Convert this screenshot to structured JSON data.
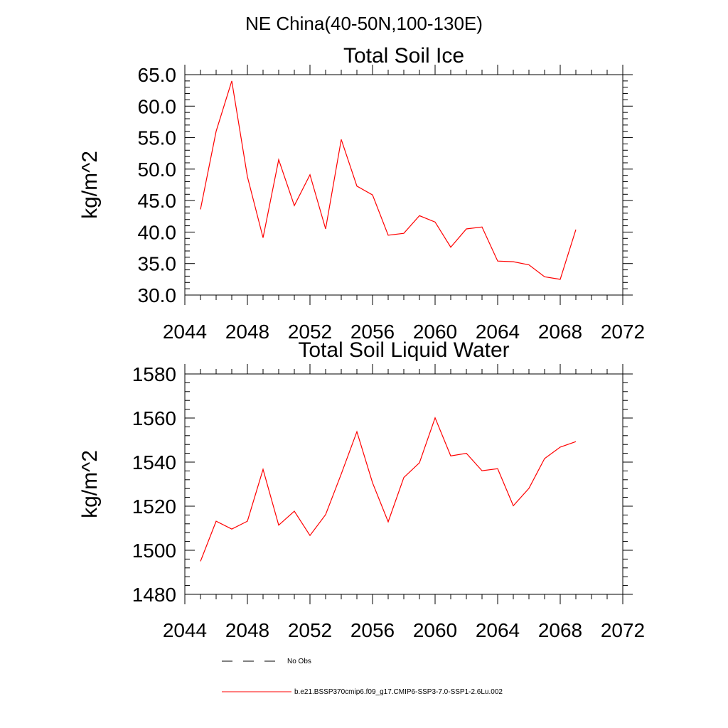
{
  "figure": {
    "suptitle": "NE China(40-50N,100-130E)",
    "colors": {
      "series": "#ff0000",
      "axis": "#000000",
      "obs": "#000000"
    }
  },
  "chart_data": [
    {
      "type": "line",
      "title": "Total Soil Ice",
      "xlabel": "",
      "ylabel": "kg/m^2",
      "xlim": [
        2044,
        2072
      ],
      "ylim": [
        30,
        65
      ],
      "xticks": [
        "2044",
        "2048",
        "2052",
        "2056",
        "2060",
        "2064",
        "2068",
        "2072"
      ],
      "yticks": [
        "30.0",
        "35.0",
        "40.0",
        "45.0",
        "50.0",
        "55.0",
        "60.0",
        "65.0"
      ],
      "grid": false,
      "series": [
        {
          "name": "b.e21.BSSP370cmip6.f09_g17.CMIP6-SSP3-7.0-SSP1-2.6Lu.002",
          "x": [
            2045,
            2046,
            2047,
            2048,
            2049,
            2050,
            2051,
            2052,
            2053,
            2054,
            2055,
            2056,
            2057,
            2058,
            2059,
            2060,
            2061,
            2062,
            2063,
            2064,
            2065,
            2066,
            2067,
            2068,
            2069
          ],
          "y": [
            43.6,
            56.0,
            64.0,
            48.8,
            39.1,
            51.5,
            44.2,
            49.1,
            40.5,
            54.7,
            47.3,
            45.9,
            39.5,
            39.8,
            42.6,
            41.6,
            37.6,
            40.5,
            40.8,
            35.4,
            35.3,
            34.8,
            32.9,
            32.5,
            40.4
          ]
        }
      ]
    },
    {
      "type": "line",
      "title": "Total Soil Liquid Water",
      "xlabel": "",
      "ylabel": "kg/m^2",
      "xlim": [
        2044,
        2072
      ],
      "ylim": [
        1480,
        1580
      ],
      "xticks": [
        "2044",
        "2048",
        "2052",
        "2056",
        "2060",
        "2064",
        "2068",
        "2072"
      ],
      "yticks": [
        "1480",
        "1500",
        "1520",
        "1540",
        "1560",
        "1580"
      ],
      "grid": false,
      "series": [
        {
          "name": "b.e21.BSSP370cmip6.f09_g17.CMIP6-SSP3-7.0-SSP1-2.6Lu.002",
          "x": [
            2045,
            2046,
            2047,
            2048,
            2049,
            2050,
            2051,
            2052,
            2053,
            2054,
            2055,
            2056,
            2057,
            2058,
            2059,
            2060,
            2061,
            2062,
            2063,
            2064,
            2065,
            2066,
            2067,
            2068,
            2069
          ],
          "y": [
            1495.0,
            1513.2,
            1509.6,
            1513.2,
            1536.7,
            1511.4,
            1517.7,
            1506.7,
            1516.2,
            1534.6,
            1553.8,
            1530.6,
            1512.9,
            1533.0,
            1539.7,
            1560.1,
            1542.8,
            1544.0,
            1536.1,
            1537.0,
            1520.2,
            1528.1,
            1541.6,
            1546.8,
            1549.3
          ]
        }
      ]
    }
  ],
  "legend": {
    "placement": "bottom",
    "items": [
      {
        "label": "No Obs",
        "style": "dashed",
        "color": "#000000"
      },
      {
        "label": "b.e21.BSSP370cmip6.f09_g17.CMIP6-SSP3-7.0-SSP1-2.6Lu.002",
        "style": "solid",
        "color": "#ff0000"
      }
    ]
  }
}
